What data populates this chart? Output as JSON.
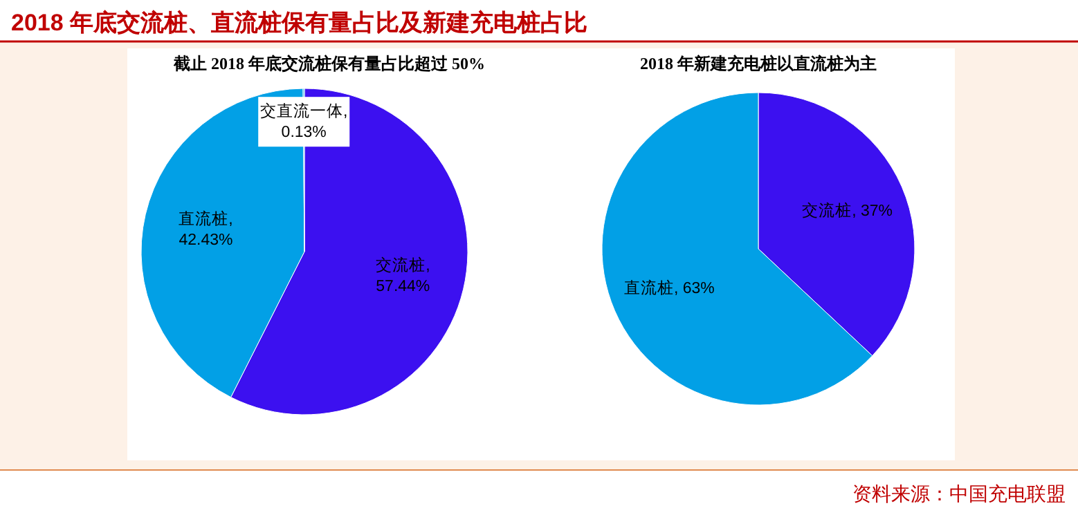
{
  "chart_data": [
    {
      "type": "pie",
      "title": "截止 2018 年底交流桩保有量占比超过 50%",
      "categories": [
        "交流桩",
        "直流桩",
        "交直流一体"
      ],
      "values": [
        57.44,
        42.43,
        0.13
      ],
      "value_labels": [
        ", 57.44%",
        ", 42.43%",
        ", 0.13%"
      ],
      "colors": [
        "#3c10f0",
        "#02a0e6",
        "#02a0e6"
      ],
      "annotations": [
        "2018 年底交流桩、直流桩保有量占比及新建充电桩占比",
        "资料来源：中国充电联盟"
      ]
    },
    {
      "type": "pie",
      "title": "2018 年新建充电桩以直流桩为主",
      "categories": [
        "交流桩",
        "直流桩"
      ],
      "values": [
        37,
        63
      ],
      "value_labels": [
        ", 37%",
        ", 63%"
      ],
      "colors": [
        "#3c10f0",
        "#02a0e6"
      ]
    }
  ]
}
